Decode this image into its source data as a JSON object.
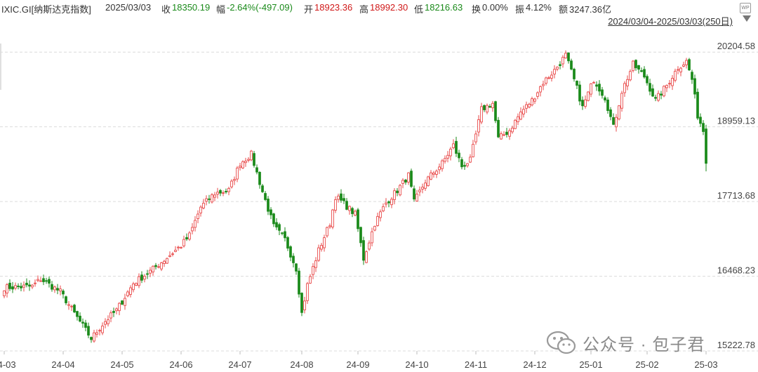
{
  "header": {
    "ticker": "IXIC.GI[纳斯达克指数]",
    "date": "2025/03/03",
    "close_label": "收",
    "close_value": "18350.19",
    "change_label": "幅",
    "change_value": "-2.64%(-497.09)",
    "open_label": "开",
    "open_value": "18923.36",
    "high_label": "高",
    "high_value": "18992.30",
    "low_label": "低",
    "low_value": "18216.63",
    "turnover_label": "换",
    "turnover_value": "0.00%",
    "amplitude_label": "振",
    "amplitude_value": "4.12%",
    "amount_label": "额",
    "amount_value": "3247.36亿",
    "range_text": "2024/03/04-2025/03/03(250日)",
    "badge_text": "WP"
  },
  "watermark": {
    "text": "公众号 · 包子君",
    "icon": "wechat-icon"
  },
  "colors": {
    "up": "#e84848",
    "down": "#1a8a1a",
    "grid": "#dcdcdc",
    "axis_text": "#444444"
  },
  "chart_data": {
    "type": "candlestick",
    "title": "",
    "y_ticks": [
      15222.78,
      16468.23,
      17713.68,
      18959.13,
      20204.58
    ],
    "y_tick_labels": [
      "15222.78",
      "16468.23",
      "17713.68",
      "18959.13",
      "20204.58"
    ],
    "ylim": [
      15222.78,
      20604.58
    ],
    "x_tick_labels": [
      "24-03",
      "24-04",
      "24-05",
      "24-06",
      "24-07",
      "24-08",
      "24-09",
      "24-10",
      "24-11",
      "24-12",
      "25-01",
      "25-02",
      "25-03"
    ],
    "x_tick_index": [
      0,
      21,
      42,
      63,
      84,
      106,
      126,
      147,
      168,
      189,
      209,
      229,
      250
    ],
    "grid": "horizontal dashed",
    "last_candle": {
      "open": 18923.36,
      "high": 18992.3,
      "low": 18216.63,
      "close": 18350.19
    },
    "approx_close_path": [
      [
        0,
        16280
      ],
      [
        10,
        16300
      ],
      [
        13,
        16420
      ],
      [
        20,
        16210
      ],
      [
        25,
        15850
      ],
      [
        31,
        15430
      ],
      [
        36,
        15720
      ],
      [
        40,
        15900
      ],
      [
        46,
        16350
      ],
      [
        52,
        16550
      ],
      [
        58,
        16780
      ],
      [
        63,
        16980
      ],
      [
        66,
        17150
      ],
      [
        70,
        17620
      ],
      [
        75,
        17850
      ],
      [
        80,
        17900
      ],
      [
        84,
        18350
      ],
      [
        88,
        18500
      ],
      [
        92,
        17880
      ],
      [
        96,
        17300
      ],
      [
        100,
        17080
      ],
      [
        104,
        16600
      ],
      [
        106,
        15850
      ],
      [
        108,
        16320
      ],
      [
        112,
        16900
      ],
      [
        116,
        17350
      ],
      [
        118,
        17800
      ],
      [
        121,
        17680
      ],
      [
        125,
        17500
      ],
      [
        128,
        16760
      ],
      [
        132,
        17350
      ],
      [
        136,
        17690
      ],
      [
        140,
        17900
      ],
      [
        144,
        18150
      ],
      [
        146,
        17700
      ],
      [
        150,
        18050
      ],
      [
        156,
        18350
      ],
      [
        160,
        18650
      ],
      [
        163,
        18300
      ],
      [
        166,
        18400
      ],
      [
        170,
        19250
      ],
      [
        174,
        19350
      ],
      [
        176,
        18760
      ],
      [
        180,
        18900
      ],
      [
        184,
        19200
      ],
      [
        188,
        19400
      ],
      [
        192,
        19700
      ],
      [
        196,
        19900
      ],
      [
        200,
        20150
      ],
      [
        204,
        19600
      ],
      [
        206,
        19280
      ],
      [
        210,
        19750
      ],
      [
        214,
        19450
      ],
      [
        217,
        18950
      ],
      [
        220,
        19550
      ],
      [
        224,
        20000
      ],
      [
        228,
        19800
      ],
      [
        232,
        19400
      ],
      [
        236,
        19650
      ],
      [
        240,
        19950
      ],
      [
        243,
        20050
      ],
      [
        245,
        19750
      ],
      [
        247,
        19150
      ],
      [
        249,
        18900
      ],
      [
        250,
        18350
      ]
    ]
  }
}
